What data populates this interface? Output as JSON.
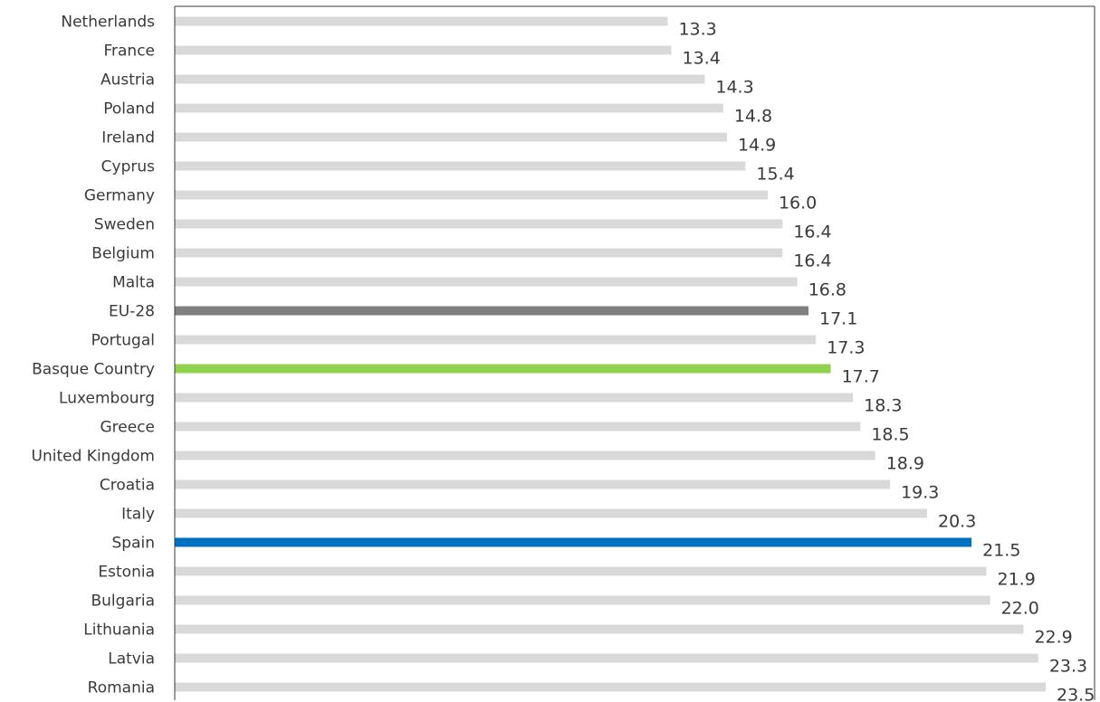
{
  "chart_data": {
    "type": "bar",
    "orientation": "horizontal",
    "title": "",
    "xlabel": "",
    "ylabel": "",
    "xlim": [
      0,
      23.5
    ],
    "grid": false,
    "legend": "none",
    "default_color": "#d9d9d9",
    "categories": [
      "Netherlands",
      "France",
      "Austria",
      "Poland",
      "Ireland",
      "Cyprus",
      "Germany",
      "Sweden",
      "Belgium",
      "Malta",
      "EU-28",
      "Portugal",
      "Basque Country",
      "Luxembourg",
      "Greece",
      "United Kingdom",
      "Croatia",
      "Italy",
      "Spain",
      "Estonia",
      "Bulgaria",
      "Lithuania",
      "Latvia",
      "Romania"
    ],
    "values": [
      13.3,
      13.4,
      14.3,
      14.8,
      14.9,
      15.4,
      16.0,
      16.4,
      16.4,
      16.8,
      17.1,
      17.3,
      17.7,
      18.3,
      18.5,
      18.9,
      19.3,
      20.3,
      21.5,
      21.9,
      22.0,
      22.9,
      23.3,
      23.5
    ],
    "value_labels": [
      "13.3",
      "13.4",
      "14.3",
      "14.8",
      "14.9",
      "15.4",
      "16.0",
      "16.4",
      "16.4",
      "16.8",
      "17.1",
      "17.3",
      "17.7",
      "18.3",
      "18.5",
      "18.9",
      "19.3",
      "20.3",
      "21.5",
      "21.9",
      "22.0",
      "22.9",
      "23.3",
      "23.5"
    ],
    "highlights": {
      "EU-28": "#7f7f7f",
      "Basque Country": "#92d050",
      "Spain": "#0070c0"
    }
  }
}
